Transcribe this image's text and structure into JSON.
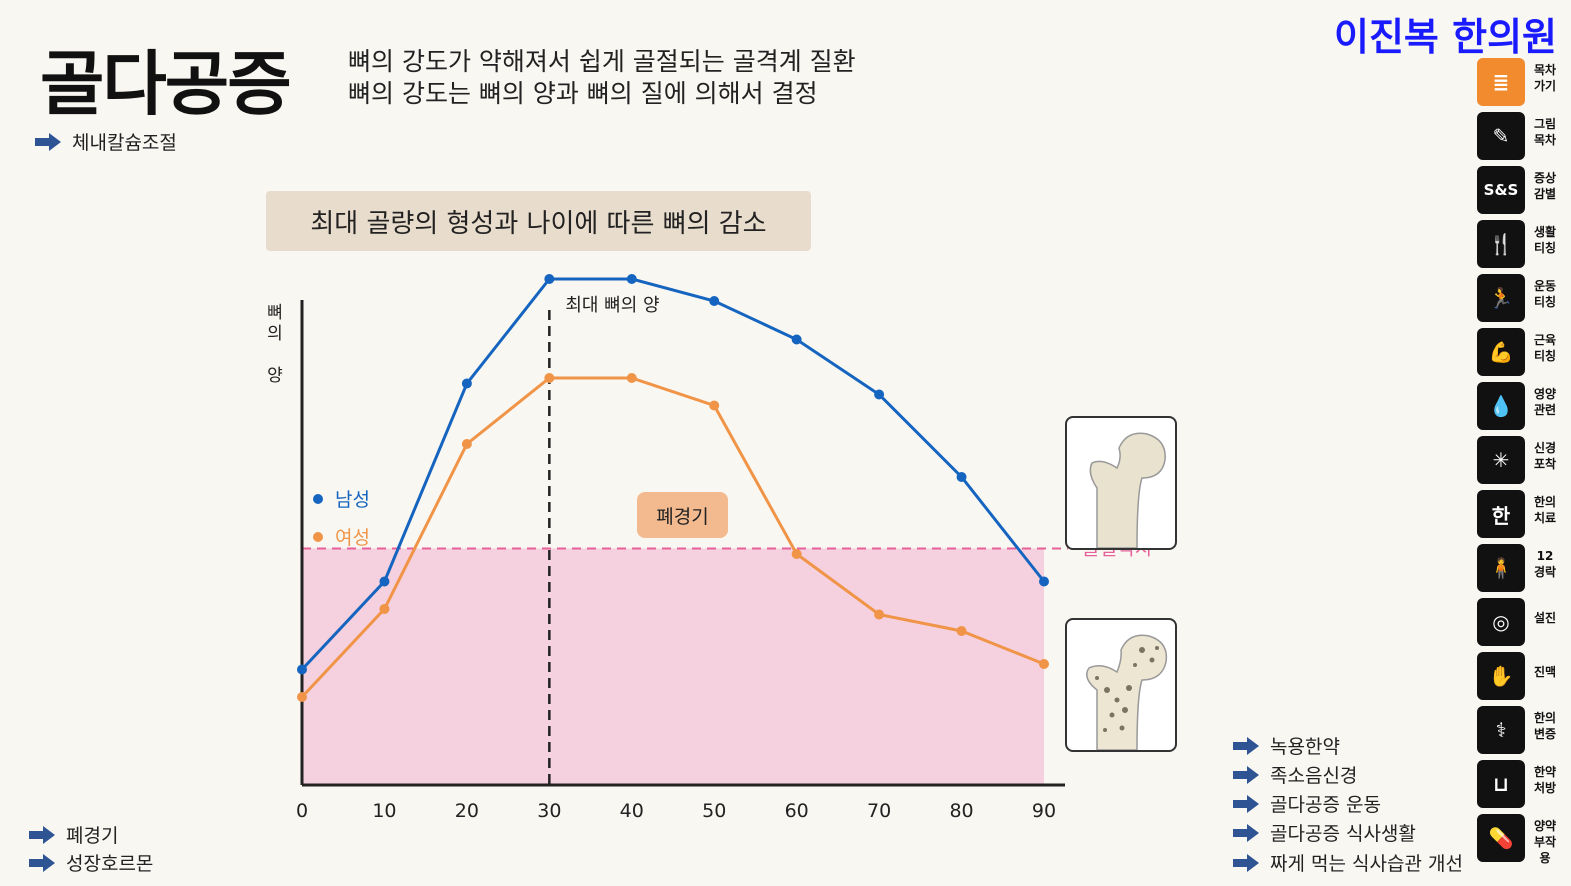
{
  "header": {
    "title": "골다공증",
    "desc_line1": "뼈의 강도가 약해져서 쉽게 골절되는 골격계 질환",
    "desc_line2": "뼈의 강도는 뼈의 양과 뼈의 질에 의해서 결정",
    "brand": "이진복 한의원"
  },
  "top_links": [
    {
      "label": "체내칼슘조절"
    }
  ],
  "bottom_left_links": [
    {
      "label": "폐경기"
    },
    {
      "label": "성장호르몬"
    }
  ],
  "bottom_right_links": [
    {
      "label": "녹용한약"
    },
    {
      "label": "족소음신경"
    },
    {
      "label": "골다공증 운동"
    },
    {
      "label": "골다공증 식사생활"
    },
    {
      "label": "짜게 먹는 식사습관 개선"
    }
  ],
  "side_menu": [
    {
      "label": "목차\n가기",
      "icon": "document-icon",
      "glyph": "≣",
      "color": "#f28a2e"
    },
    {
      "label": "그림\n목차",
      "icon": "brush-icon",
      "glyph": "✎",
      "color": "#111111"
    },
    {
      "label": "증상\n감별",
      "icon": "sns-icon",
      "glyph": "S&S",
      "color": "#111111"
    },
    {
      "label": "생활\n티칭",
      "icon": "utensils-icon",
      "glyph": "🍴",
      "color": "#111111"
    },
    {
      "label": "운동\n티칭",
      "icon": "stretch-icon",
      "glyph": "🏃",
      "color": "#111111"
    },
    {
      "label": "근육\n티칭",
      "icon": "muscle-icon",
      "glyph": "💪",
      "color": "#111111"
    },
    {
      "label": "영양\n관련",
      "icon": "drop-icon",
      "glyph": "💧",
      "color": "#111111"
    },
    {
      "label": "신경\n포착",
      "icon": "neuron-icon",
      "glyph": "✳",
      "color": "#111111"
    },
    {
      "label": "한의\n치료",
      "icon": "han-icon",
      "glyph": "한",
      "color": "#111111"
    },
    {
      "label": "12\n경락",
      "icon": "meridian-icon",
      "glyph": "🧍",
      "color": "#111111"
    },
    {
      "label": "설진",
      "icon": "tongue-icon",
      "glyph": "◎",
      "color": "#111111"
    },
    {
      "label": "진맥",
      "icon": "pulse-icon",
      "glyph": "✋",
      "color": "#111111"
    },
    {
      "label": "한의\n변증",
      "icon": "lungs-icon",
      "glyph": "⚕",
      "color": "#111111"
    },
    {
      "label": "한약\n처방",
      "icon": "herbal-cup-icon",
      "glyph": "⊔",
      "color": "#111111"
    },
    {
      "label": "양약\n부작용",
      "icon": "pill-bottle-icon",
      "glyph": "💊",
      "color": "#111111"
    }
  ],
  "chart_data": {
    "type": "line",
    "title": "최대 골량의 형성과 나이에 따른 뼈의 감소",
    "ylabel": "뼈의 양",
    "xlabel": "",
    "x": [
      0,
      10,
      20,
      30,
      40,
      50,
      60,
      70,
      80,
      90
    ],
    "xlim": [
      0,
      90
    ],
    "ylim": [
      0,
      100
    ],
    "series": [
      {
        "name": "남성",
        "color": "#1565c0",
        "values": [
          21,
          37,
          73,
          92,
          92,
          88,
          81,
          71,
          56,
          37
        ]
      },
      {
        "name": "여성",
        "color": "#f09447",
        "values": [
          16,
          32,
          62,
          74,
          74,
          69,
          42,
          31,
          28,
          22
        ]
      }
    ],
    "threshold": {
      "label": "골절역치",
      "value": 43,
      "color": "#e8609a"
    },
    "peak_line": {
      "label": "최대 뼈의 양",
      "x": 30
    },
    "annotation": {
      "label": "폐경기"
    },
    "bone_images": [
      "healthy-femur-icon",
      "osteoporotic-femur-icon"
    ]
  }
}
